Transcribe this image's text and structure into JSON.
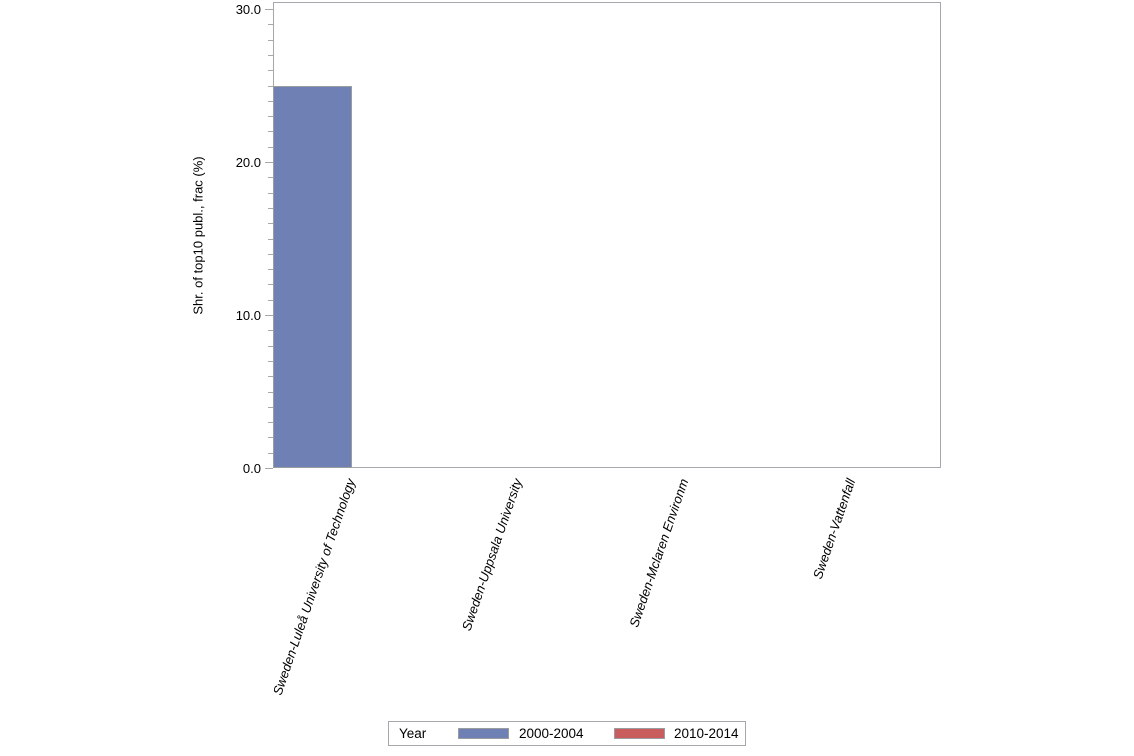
{
  "chart_data": {
    "type": "bar",
    "title": "",
    "categories": [
      "Sweden-Luleå University of Technology",
      "Sweden-Uppsala University",
      "Sweden-Mclaren Environm",
      "Sweden-Vattenfall"
    ],
    "series": [
      {
        "name": "2000-2004",
        "color": "#6e80b4",
        "values": [
          25.0,
          0,
          0,
          0
        ]
      },
      {
        "name": "2010-2014",
        "color": "#c95d5d",
        "values": [
          0,
          0,
          0,
          0
        ]
      }
    ],
    "xlabel": "",
    "ylabel": "Shr. of top10 publ., frac (%)",
    "ylim": [
      0,
      30
    ],
    "yticks": [
      0,
      10,
      20,
      30
    ],
    "ytick_labels": [
      "0.0",
      "10.0",
      "20.0",
      "30.0"
    ],
    "minor_tick_step": 1,
    "grid": false,
    "legend": {
      "title": "Year",
      "position": "bottom"
    }
  },
  "colors": {
    "axis_border": "#a6a8ab",
    "bar_outline": "#9a9c9f",
    "series_blue": "#6e80b4",
    "series_red": "#c95d5d",
    "text": "#000000",
    "background": "#ffffff"
  }
}
